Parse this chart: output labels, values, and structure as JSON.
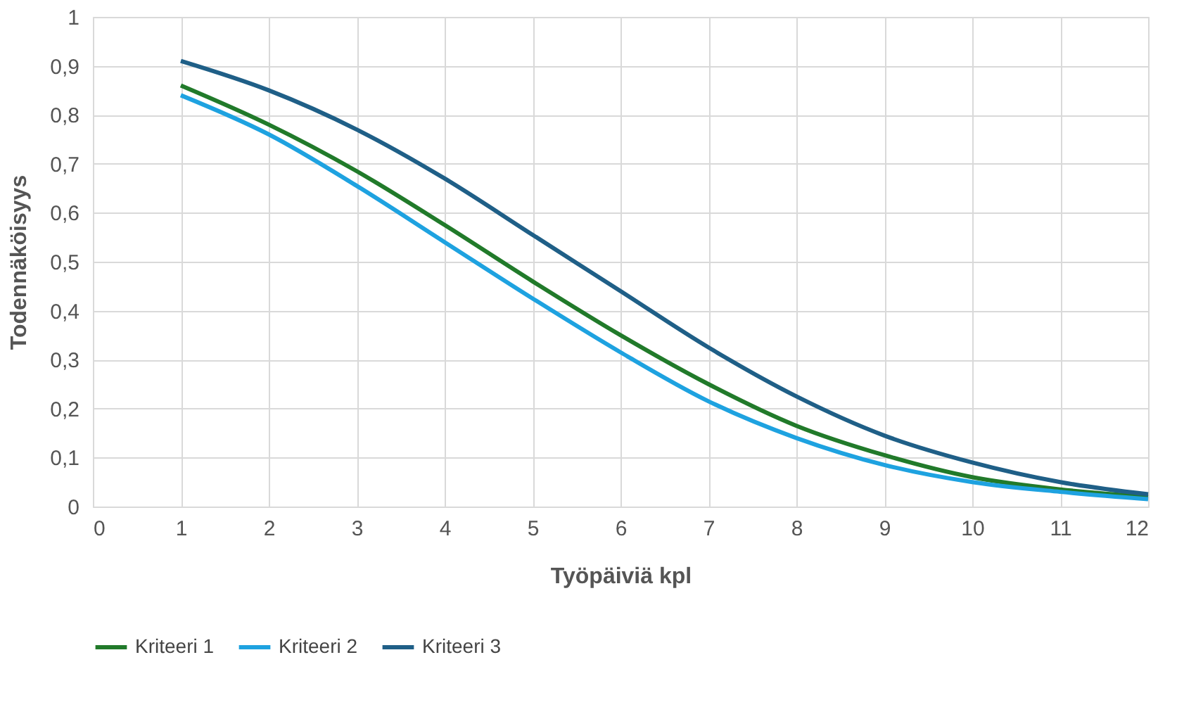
{
  "chart_data": {
    "type": "line",
    "xlabel": "Työpäiviä kpl",
    "ylabel": "Todennäköisyys",
    "x": [
      1,
      2,
      3,
      4,
      5,
      6,
      7,
      8,
      9,
      10,
      11,
      12
    ],
    "series": [
      {
        "name": "Kriteeri 1",
        "color": "#217a2a",
        "values": [
          0.86,
          0.78,
          0.685,
          0.575,
          0.46,
          0.35,
          0.25,
          0.165,
          0.105,
          0.06,
          0.035,
          0.02
        ]
      },
      {
        "name": "Kriteeri 2",
        "color": "#1ea2e0",
        "values": [
          0.84,
          0.76,
          0.655,
          0.54,
          0.425,
          0.315,
          0.215,
          0.14,
          0.085,
          0.05,
          0.03,
          0.015
        ]
      },
      {
        "name": "Kriteeri 3",
        "color": "#1f5f87",
        "values": [
          0.91,
          0.85,
          0.77,
          0.67,
          0.555,
          0.44,
          0.325,
          0.225,
          0.145,
          0.09,
          0.05,
          0.025
        ]
      }
    ],
    "xlim": [
      0,
      12
    ],
    "xticks": [
      0,
      1,
      2,
      3,
      4,
      5,
      6,
      7,
      8,
      9,
      10,
      11,
      12
    ],
    "ylim": [
      0,
      1
    ],
    "yticks": [
      0,
      {
        "value": 0.1,
        "label": "0,1"
      },
      {
        "value": 0.2,
        "label": "0,2"
      },
      {
        "value": 0.3,
        "label": "0,3"
      },
      {
        "value": 0.4,
        "label": "0,4"
      },
      {
        "value": 0.5,
        "label": "0,5"
      },
      {
        "value": 0.6,
        "label": "0,6"
      },
      {
        "value": 0.7,
        "label": "0,7"
      },
      {
        "value": 0.8,
        "label": "0,8"
      },
      {
        "value": 0.9,
        "label": "0,9"
      },
      1
    ],
    "grid": true,
    "legend": "bottom",
    "marker": "none",
    "line_style": "solid"
  }
}
